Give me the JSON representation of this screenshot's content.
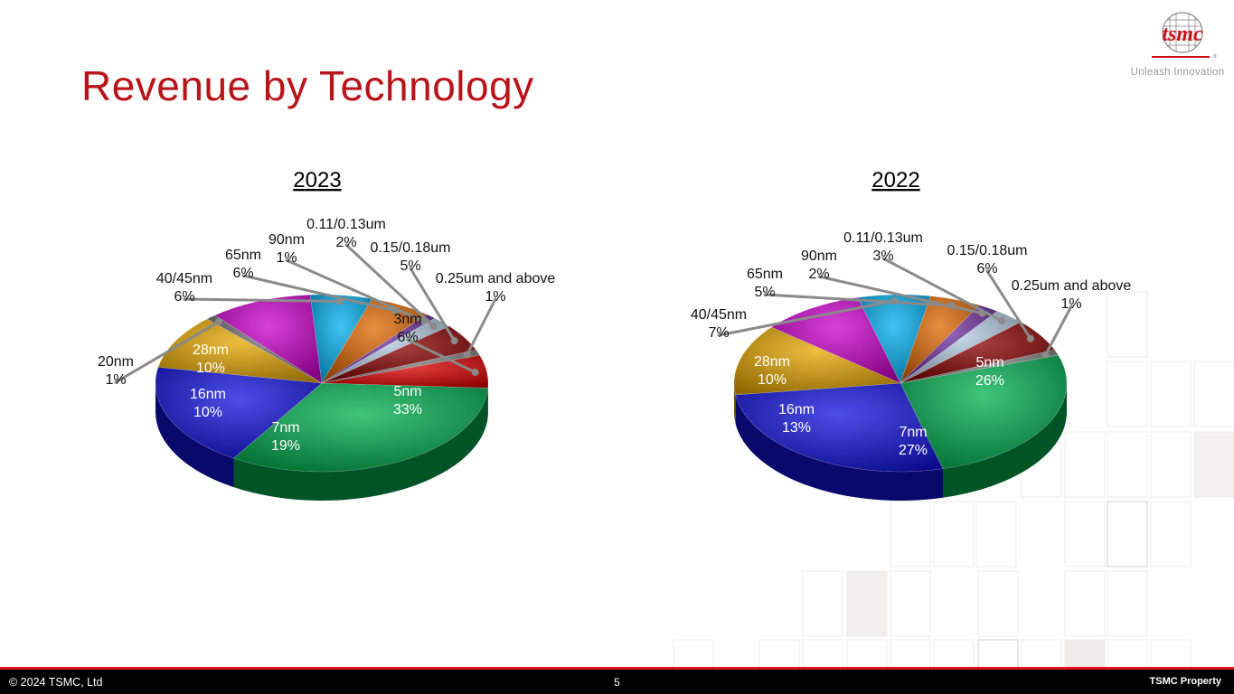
{
  "header": {
    "title": "Revenue by Technology",
    "logo_text": "tsmc",
    "tagline": "Unleash Innovation"
  },
  "footer": {
    "copyright": "© 2024 TSMC, Ltd",
    "page_number": "5",
    "property": "TSMC Property"
  },
  "colors": {
    "title": "#b8141a",
    "footer_accent": "#e1121a"
  },
  "chart_data": [
    {
      "type": "pie",
      "title": "2023",
      "labels": [
        "3nm",
        "5nm",
        "7nm",
        "16nm",
        "20nm",
        "28nm",
        "40/45nm",
        "65nm",
        "90nm",
        "0.11/0.13um",
        "0.15/0.18um",
        "0.25um and above"
      ],
      "values": [
        6,
        33,
        19,
        10,
        1,
        10,
        6,
        6,
        1,
        2,
        5,
        1
      ],
      "value_labels": [
        "6%",
        "33%",
        "19%",
        "10%",
        "1%",
        "10%",
        "6%",
        "6%",
        "1%",
        "2%",
        "5%",
        "1%"
      ],
      "colors": [
        "#e00000",
        "#00b050",
        "#1212e0",
        "#e8a800",
        "#707070",
        "#cc00cc",
        "#00b0f0",
        "#e06800",
        "#7030a0",
        "#b4cce4",
        "#8b0000",
        "#808080"
      ]
    },
    {
      "type": "pie",
      "title": "2022",
      "labels": [
        "5nm",
        "7nm",
        "16nm",
        "28nm",
        "40/45nm",
        "65nm",
        "90nm",
        "0.11/0.13um",
        "0.15/0.18um",
        "0.25um and above"
      ],
      "values": [
        26,
        27,
        13,
        10,
        7,
        5,
        2,
        3,
        6,
        1
      ],
      "value_labels": [
        "26%",
        "27%",
        "13%",
        "10%",
        "7%",
        "5%",
        "2%",
        "3%",
        "6%",
        "1%"
      ],
      "colors": [
        "#00b050",
        "#1212e0",
        "#e8a800",
        "#cc00cc",
        "#00b0f0",
        "#e06800",
        "#7030a0",
        "#b4cce4",
        "#8b0000",
        "#808080"
      ]
    }
  ]
}
